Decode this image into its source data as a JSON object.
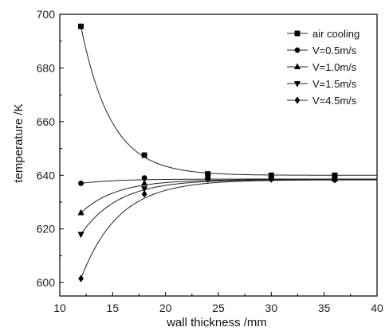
{
  "chart_data": {
    "type": "scatter",
    "title": "",
    "xlabel": "wall thickness  /mm",
    "ylabel": "temperature  /K",
    "xlim": [
      10,
      40
    ],
    "ylim": [
      595,
      700
    ],
    "xticks": [
      10,
      15,
      20,
      25,
      30,
      35,
      40
    ],
    "yticks": [
      600,
      620,
      640,
      660,
      680,
      700
    ],
    "grid": false,
    "legend_position": "top-right",
    "series": [
      {
        "name": "air cooling",
        "marker": "square",
        "x": [
          12,
          18,
          24,
          30,
          36
        ],
        "y": [
          695.5,
          647.5,
          640.5,
          640,
          640
        ],
        "fit": {
          "asymptote": 640,
          "amp": 55.5,
          "rate": 0.35
        }
      },
      {
        "name": "V=0.5m/s",
        "marker": "circle",
        "x": [
          12,
          18,
          24,
          30,
          36
        ],
        "y": [
          637,
          639,
          639,
          638.8,
          638.5
        ],
        "fit": {
          "asymptote": 638.6,
          "amp": -1.6,
          "rate": 0.3
        }
      },
      {
        "name": "V=1.0m/s",
        "marker": "triangle-up",
        "x": [
          12,
          18,
          24,
          30,
          36
        ],
        "y": [
          626,
          637,
          639.5,
          639,
          638.5
        ],
        "fit": {
          "asymptote": 638.4,
          "amp": -12.4,
          "rate": 0.3
        }
      },
      {
        "name": "V=1.5m/s",
        "marker": "triangle-down",
        "x": [
          12,
          18,
          24,
          30,
          36
        ],
        "y": [
          618,
          635,
          639.5,
          638.8,
          638.5
        ],
        "fit": {
          "asymptote": 638.4,
          "amp": -20.4,
          "rate": 0.28
        }
      },
      {
        "name": "V=4.5m/s",
        "marker": "diamond",
        "x": [
          12,
          18,
          24,
          30,
          36
        ],
        "y": [
          601.5,
          633,
          638.5,
          638.5,
          638.3
        ],
        "fit": {
          "asymptote": 638.3,
          "amp": -36.8,
          "rate": 0.28
        }
      }
    ]
  }
}
